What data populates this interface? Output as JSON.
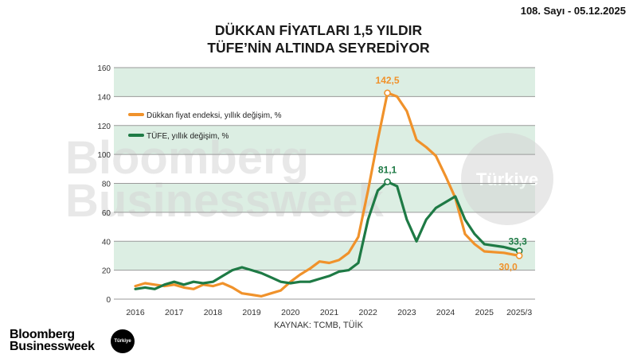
{
  "header": {
    "issue": "108. Sayı - 05.12.2025",
    "title_line1": "DÜKKAN FİYATLARI 1,5 YILDIR",
    "title_line2": "TÜFE’NİN ALTINDA SEYREDİYOR"
  },
  "footer": {
    "source": "KAYNAK: TCMB, TÜİK",
    "brand_line1": "Bloomberg",
    "brand_line2": "Businessweek",
    "badge": "Türkiye"
  },
  "watermark": {
    "line1": "Bloomberg",
    "line2": "Businessweek",
    "circle": "Türkiye"
  },
  "colors": {
    "orange": "#F0922B",
    "green": "#1E7A45",
    "band": "#DCEEE3",
    "grid": "#9A9A9A"
  },
  "chart_data": {
    "type": "line",
    "title": "DÜKKAN FİYATLARI 1,5 YILDIR TÜFE’NİN ALTINDA SEYREDİYOR",
    "xlabel": "",
    "ylabel": "",
    "ylim": [
      0,
      160
    ],
    "yticks": [
      0,
      20,
      40,
      60,
      80,
      100,
      120,
      140,
      160
    ],
    "x_tick_labels": [
      "2016",
      "2017",
      "2018",
      "2019",
      "2020",
      "2021",
      "2022",
      "2023",
      "2024",
      "2025",
      "2025/3"
    ],
    "x_tick_positions": [
      2016,
      2017,
      2018,
      2019,
      2020,
      2021,
      2022,
      2023,
      2024,
      2025,
      2025.9
    ],
    "grid": true,
    "legend_position": "upper-left",
    "series": [
      {
        "name": "Dükkan fiyat endeksi, yıllık değişim, %",
        "color": "#F0922B",
        "x": [
          2016,
          2016.25,
          2016.5,
          2016.75,
          2017,
          2017.25,
          2017.5,
          2017.75,
          2018,
          2018.25,
          2018.5,
          2018.75,
          2019,
          2019.25,
          2019.5,
          2019.75,
          2020,
          2020.25,
          2020.5,
          2020.75,
          2021,
          2021.25,
          2021.5,
          2021.75,
          2022,
          2022.25,
          2022.5,
          2022.75,
          2023,
          2023.25,
          2023.5,
          2023.75,
          2024,
          2024.25,
          2024.5,
          2024.75,
          2025,
          2025.5,
          2025.9
        ],
        "values": [
          9,
          11,
          10,
          9,
          10,
          8,
          7,
          10,
          9,
          11,
          8,
          4,
          3,
          2,
          4,
          6,
          12,
          17,
          21,
          26,
          25,
          27,
          32,
          43,
          75,
          110,
          142.5,
          140,
          130,
          110,
          105,
          99,
          85,
          70,
          45,
          38,
          33,
          32,
          30.0
        ]
      },
      {
        "name": "TÜFE, yıllık değişim, %",
        "color": "#1E7A45",
        "x": [
          2016,
          2016.25,
          2016.5,
          2016.75,
          2017,
          2017.25,
          2017.5,
          2017.75,
          2018,
          2018.25,
          2018.5,
          2018.75,
          2019,
          2019.25,
          2019.5,
          2019.75,
          2020,
          2020.25,
          2020.5,
          2020.75,
          2021,
          2021.25,
          2021.5,
          2021.75,
          2022,
          2022.25,
          2022.5,
          2022.75,
          2023,
          2023.25,
          2023.5,
          2023.75,
          2024,
          2024.25,
          2024.5,
          2024.75,
          2025,
          2025.5,
          2025.9
        ],
        "values": [
          7,
          8,
          7,
          10,
          12,
          10,
          12,
          11,
          12,
          16,
          20,
          22,
          20,
          18,
          15,
          12,
          11,
          12,
          12,
          14,
          16,
          19,
          20,
          25,
          55,
          75,
          81.1,
          78,
          55,
          40,
          55,
          63,
          67,
          71,
          55,
          45,
          38,
          36,
          33.3
        ]
      }
    ],
    "annotations": [
      {
        "text": "142,5",
        "series": 0,
        "x": 2022.5,
        "y": 142.5
      },
      {
        "text": "81,1",
        "series": 1,
        "x": 2022.5,
        "y": 81.1
      },
      {
        "text": "33,3",
        "series": 1,
        "x": 2025.9,
        "y": 33.3
      },
      {
        "text": "30,0",
        "series": 0,
        "x": 2025.9,
        "y": 30.0
      }
    ]
  }
}
